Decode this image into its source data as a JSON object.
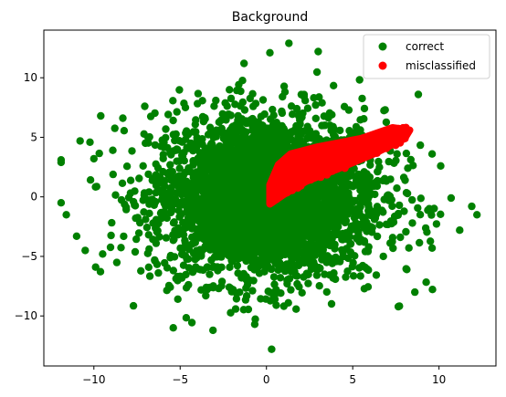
{
  "chart_data": {
    "type": "scatter",
    "title": "Background",
    "xlabel": "",
    "ylabel": "",
    "xlim": [
      -12.9,
      13.3
    ],
    "ylim": [
      -14.2,
      14.0
    ],
    "xticks": [
      -10,
      -5,
      0,
      5,
      10
    ],
    "yticks": [
      -10,
      -5,
      0,
      5,
      10
    ],
    "grid": false,
    "legend_position": "top-right",
    "series": [
      {
        "name": "correct",
        "color": "#008000",
        "outliers": [
          [
            1.3,
            12.9
          ],
          [
            -11.9,
            3.1
          ],
          [
            -11.9,
            2.9
          ],
          [
            -11.9,
            -0.5
          ],
          [
            -11.6,
            -1.5
          ],
          [
            12.2,
            -1.5
          ],
          [
            11.9,
            -0.8
          ],
          [
            0.2,
            12.1
          ],
          [
            3.0,
            12.2
          ],
          [
            -1.3,
            11.2
          ],
          [
            0.3,
            -12.8
          ],
          [
            -5.4,
            -11.0
          ],
          [
            -3.1,
            -11.2
          ],
          [
            -9.9,
            -5.9
          ],
          [
            -10.5,
            -4.5
          ],
          [
            9.6,
            3.6
          ],
          [
            10.1,
            2.6
          ],
          [
            10.7,
            -0.1
          ],
          [
            11.2,
            -2.8
          ],
          [
            9.6,
            -4.3
          ],
          [
            8.6,
            -8.0
          ],
          [
            8.8,
            8.6
          ],
          [
            -9.6,
            6.8
          ],
          [
            -10.8,
            4.7
          ],
          [
            -11.0,
            -3.3
          ]
        ],
        "bulk_description": "dense cloud roughly elliptical, centered near (0, 0), spreading about -10..10 in x and -11..11 in y"
      },
      {
        "name": "misclassified",
        "color": "#ff0000",
        "region_polygon": [
          [
            0.2,
            1.0
          ],
          [
            0.7,
            2.7
          ],
          [
            1.4,
            3.6
          ],
          [
            3.0,
            4.2
          ],
          [
            5.5,
            4.9
          ],
          [
            7.3,
            5.8
          ],
          [
            8.3,
            5.6
          ],
          [
            8.0,
            4.9
          ],
          [
            6.2,
            3.6
          ],
          [
            4.2,
            2.4
          ],
          [
            2.3,
            1.3
          ],
          [
            1.0,
            0.2
          ],
          [
            0.2,
            -0.6
          ]
        ]
      }
    ]
  }
}
